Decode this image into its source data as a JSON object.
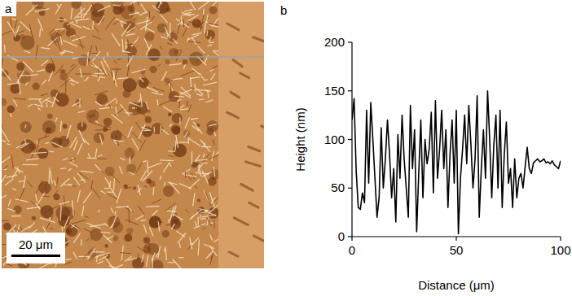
{
  "image": {
    "label": "a",
    "scale_bar": "20 μm"
  },
  "chart_data": {
    "label": "b",
    "type": "line",
    "color": "#000000",
    "x_label": "Distance (μm)",
    "y_label": "Height (nm)",
    "x": [
      0,
      1,
      2,
      3,
      4,
      5,
      6,
      7,
      8,
      9,
      10,
      11,
      12,
      13,
      14,
      15,
      16,
      17,
      18,
      19,
      20,
      21,
      22,
      23,
      24,
      25,
      26,
      27,
      28,
      29,
      30,
      31,
      32,
      33,
      34,
      35,
      36,
      37,
      38,
      39,
      40,
      41,
      42,
      43,
      44,
      45,
      46,
      47,
      48,
      49,
      50,
      51,
      52,
      53,
      54,
      55,
      56,
      57,
      58,
      59,
      60,
      61,
      62,
      63,
      64,
      65,
      66,
      67,
      68,
      69,
      70,
      71,
      72,
      73,
      74,
      75,
      76,
      77,
      78,
      79,
      80,
      81,
      82,
      83,
      84,
      85,
      86,
      87,
      88,
      89,
      90,
      91,
      92,
      93,
      94,
      95,
      96,
      97,
      98,
      99,
      100
    ],
    "values": [
      120,
      142,
      68,
      30,
      28,
      45,
      35,
      130,
      55,
      138,
      100,
      60,
      20,
      40,
      112,
      50,
      80,
      120,
      85,
      40,
      70,
      15,
      105,
      60,
      125,
      80,
      50,
      20,
      135,
      70,
      110,
      5,
      65,
      120,
      40,
      100,
      75,
      90,
      128,
      45,
      140,
      60,
      90,
      130,
      70,
      110,
      30,
      85,
      120,
      55,
      130,
      3,
      60,
      90,
      125,
      75,
      135,
      95,
      50,
      80,
      145,
      20,
      70,
      110,
      60,
      150,
      100,
      40,
      95,
      125,
      50,
      130,
      30,
      85,
      118,
      55,
      70,
      30,
      80,
      40,
      60,
      65,
      50,
      72,
      92,
      70,
      65,
      76,
      78,
      80,
      77,
      78,
      80,
      76,
      77,
      75,
      78,
      74,
      72,
      70,
      78
    ],
    "xlim": [
      0,
      100
    ],
    "ylim": [
      0,
      200
    ],
    "xticks": [
      0,
      50,
      100
    ],
    "yticks": [
      0,
      50,
      100,
      150,
      200
    ],
    "grid": false
  }
}
